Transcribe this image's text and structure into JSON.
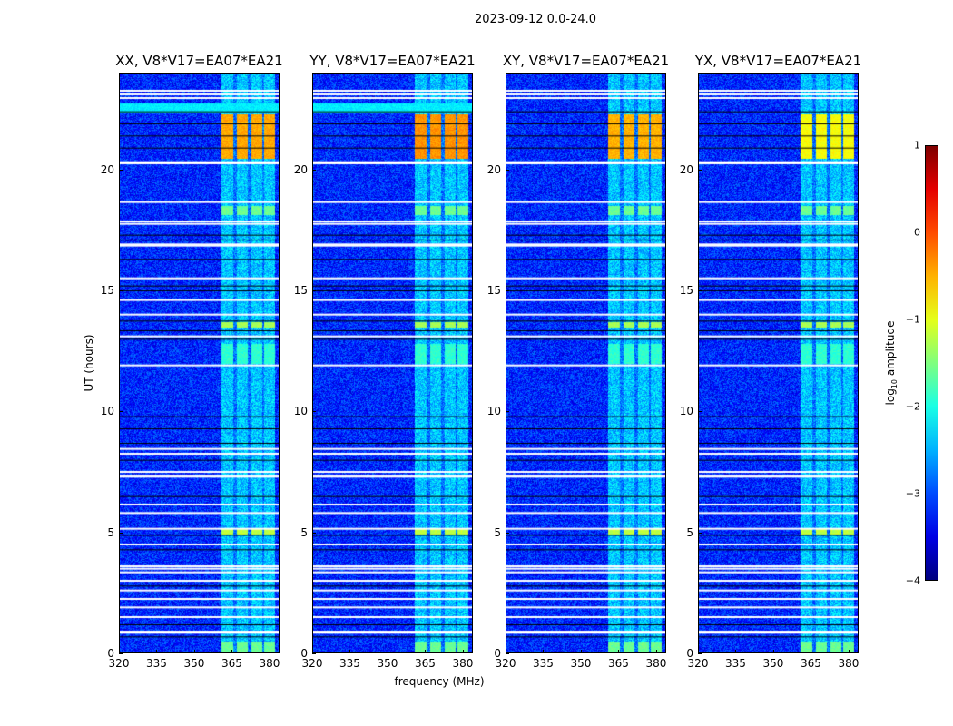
{
  "chart_data": {
    "type": "heatmap",
    "title": "2023-09-12 0.0-24.0",
    "xlabel": "frequency (MHz)",
    "ylabel": "UT (hours)",
    "xlim": [
      320,
      384
    ],
    "ylim": [
      0,
      24
    ],
    "xticks": [
      320,
      335,
      350,
      365,
      380
    ],
    "yticks": [
      0,
      5,
      10,
      15,
      20
    ],
    "colormap": "jet",
    "colorbar": {
      "label_main": "log",
      "label_sub": "10",
      "label_rest": " amplitude",
      "range": [
        -4,
        1
      ],
      "ticks": [
        -4,
        -3,
        -2,
        -1,
        0,
        1
      ]
    },
    "panels": [
      {
        "title": "XX, V8*V17=EA07*EA21",
        "hot_level": -0.45
      },
      {
        "title": "YY, V8*V17=EA07*EA21",
        "hot_level": -0.35
      },
      {
        "title": "XY, V8*V17=EA07*EA21",
        "hot_level": -0.5
      },
      {
        "title": "YX, V8*V17=EA07*EA21",
        "hot_level": -0.9
      }
    ],
    "background_log_amp": -3.2,
    "rfi_channels_mhz": [
      [
        360.8,
        365.5
      ],
      [
        367,
        371.2
      ],
      [
        372.5,
        376.8
      ],
      [
        377.8,
        382
      ]
    ],
    "rfi_log_amp": -2.4,
    "bright_intervals": [
      {
        "hours": [
          20.45,
          22.3
        ],
        "log_amp": -0.45
      },
      {
        "hours": [
          18.15,
          18.5
        ],
        "log_amp": -1.6
      },
      {
        "hours": [
          13.5,
          13.7
        ],
        "log_amp": -1.3
      },
      {
        "hours": [
          12.0,
          12.8
        ],
        "log_amp": -1.9
      },
      {
        "hours": [
          4.95,
          5.2
        ],
        "log_amp": -1.2
      },
      {
        "hours": [
          0.05,
          0.5
        ],
        "log_amp": -1.6
      }
    ],
    "broadband_cyan_hours": [
      [
        22.35,
        22.75
      ]
    ],
    "flagged_white_hours": [
      23.25,
      23.1,
      22.95,
      20.3,
      20.25,
      18.65,
      17.85,
      17.75,
      16.9,
      16.85,
      15.5,
      14.6,
      14.0,
      13.1,
      11.9,
      8.45,
      8.25,
      7.5,
      7.35,
      7.3,
      6.15,
      5.8,
      5.15,
      4.5,
      3.6,
      3.5,
      3.35,
      3.0,
      2.6,
      2.25,
      1.9,
      1.5,
      0.9,
      0.85
    ],
    "flagged_black_hours": [
      22.4,
      21.9,
      21.4,
      20.9,
      17.3,
      17.1,
      16.3,
      15.2,
      15.0,
      13.75,
      13.35,
      13.0,
      9.8,
      9.3,
      8.7,
      8.0,
      6.5,
      4.9,
      4.3,
      2.8,
      1.2,
      0.7
    ]
  }
}
